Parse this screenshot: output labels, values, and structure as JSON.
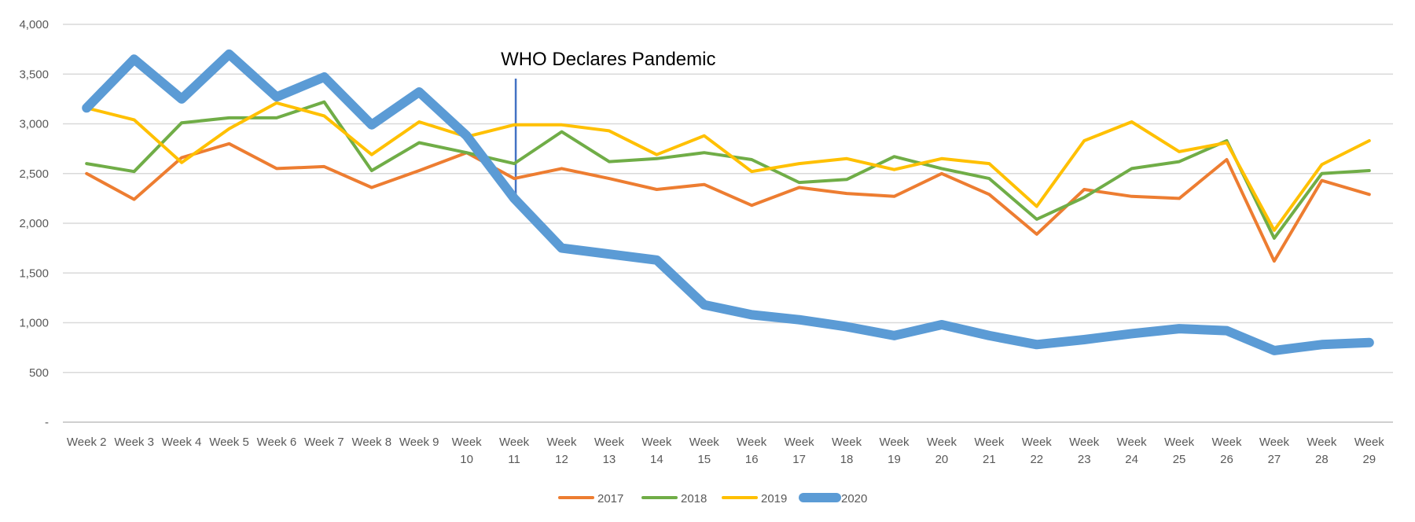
{
  "chart_data": {
    "type": "line",
    "categories": [
      "Week 2",
      "Week 3",
      "Week 4",
      "Week 5",
      "Week 6",
      "Week 7",
      "Week 8",
      "Week 9",
      "Week 10",
      "Week 11",
      "Week 12",
      "Week 13",
      "Week 14",
      "Week 15",
      "Week 16",
      "Week 17",
      "Week 18",
      "Week 19",
      "Week 20",
      "Week 21",
      "Week 22",
      "Week 23",
      "Week 24",
      "Week 25",
      "Week 26",
      "Week 27",
      "Week 28",
      "Week 29"
    ],
    "series": [
      {
        "name": "2017",
        "color": "#ED7D31",
        "values": [
          2500,
          2240,
          2660,
          2800,
          2550,
          2570,
          2360,
          2530,
          2710,
          2450,
          2550,
          2450,
          2340,
          2390,
          2180,
          2360,
          2300,
          2270,
          2500,
          2290,
          1890,
          2340,
          2270,
          2250,
          2640,
          1620,
          2430,
          2290
        ]
      },
      {
        "name": "2018",
        "color": "#70AD47",
        "values": [
          2600,
          2520,
          3010,
          3060,
          3060,
          3220,
          2530,
          2810,
          2710,
          2600,
          2920,
          2620,
          2650,
          2710,
          2640,
          2410,
          2440,
          2670,
          2550,
          2450,
          2040,
          2260,
          2550,
          2620,
          2830,
          1850,
          2500,
          2530
        ]
      },
      {
        "name": "2019",
        "color": "#FFC000",
        "values": [
          3160,
          3040,
          2610,
          2950,
          3210,
          3080,
          2690,
          3020,
          2870,
          2990,
          2990,
          2930,
          2690,
          2880,
          2520,
          2600,
          2650,
          2540,
          2650,
          2600,
          2170,
          2830,
          3020,
          2720,
          2810,
          1930,
          2590,
          2830
        ]
      },
      {
        "name": "2020",
        "color": "#5B9BD5",
        "values": [
          3160,
          3650,
          3250,
          3700,
          3270,
          3470,
          2990,
          3320,
          2880,
          2250,
          1750,
          1690,
          1630,
          1180,
          1080,
          1030,
          960,
          870,
          980,
          870,
          780,
          830,
          890,
          940,
          920,
          720,
          780,
          800
        ]
      }
    ],
    "y_ticks": [
      "-",
      "500",
      "1,000",
      "1,500",
      "2,000",
      "2,500",
      "3,000",
      "3,500",
      "4,000"
    ],
    "ylim": [
      0,
      4000
    ],
    "grid": true,
    "legend_position": "bottom",
    "annotation": {
      "text": "WHO Declares Pandemic",
      "at_category": "Week 11",
      "color": "#4472C4"
    }
  }
}
